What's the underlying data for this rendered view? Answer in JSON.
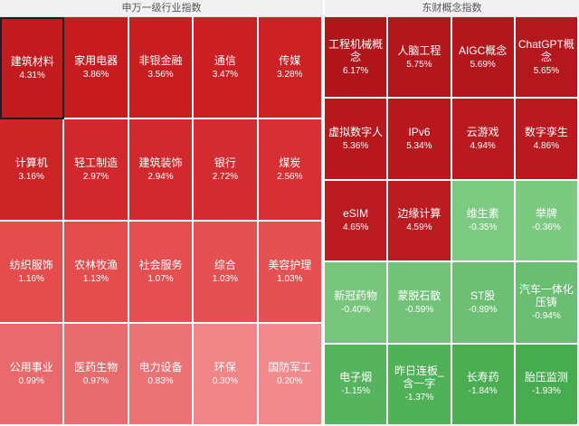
{
  "left_panel": {
    "title": "申万一级行业指数",
    "tiles": [
      {
        "name": "建筑材料",
        "pct": "4.31%",
        "color": "#c21a1e",
        "selected": true
      },
      {
        "name": "家用电器",
        "pct": "3.86%",
        "color": "#c61c20"
      },
      {
        "name": "非银金融",
        "pct": "3.56%",
        "color": "#c81e22"
      },
      {
        "name": "通信",
        "pct": "3.47%",
        "color": "#ca2024"
      },
      {
        "name": "传媒",
        "pct": "3.28%",
        "color": "#cc2226"
      },
      {
        "name": "计算机",
        "pct": "3.16%",
        "color": "#cd2428"
      },
      {
        "name": "轻工制造",
        "pct": "2.97%",
        "color": "#d0282c"
      },
      {
        "name": "建筑装饰",
        "pct": "2.94%",
        "color": "#d1292d"
      },
      {
        "name": "银行",
        "pct": "2.72%",
        "color": "#d42d31"
      },
      {
        "name": "煤炭",
        "pct": "2.56%",
        "color": "#d63034"
      },
      {
        "name": "纺织服饰",
        "pct": "1.16%",
        "color": "#e44c4e"
      },
      {
        "name": "农林牧渔",
        "pct": "1.13%",
        "color": "#e44c4e"
      },
      {
        "name": "社会服务",
        "pct": "1.07%",
        "color": "#e54f51"
      },
      {
        "name": "综合",
        "pct": "1.03%",
        "color": "#e55052"
      },
      {
        "name": "美容护理",
        "pct": "1.03%",
        "color": "#e55052"
      },
      {
        "name": "公用事业",
        "pct": "0.99%",
        "color": "#e86a6c"
      },
      {
        "name": "医药生物",
        "pct": "0.97%",
        "color": "#e86b6d"
      },
      {
        "name": "电力设备",
        "pct": "0.83%",
        "color": "#ea7375"
      },
      {
        "name": "环保",
        "pct": "0.30%",
        "color": "#ef8587"
      },
      {
        "name": "国防军工",
        "pct": "0.20%",
        "color": "#f08a8c"
      }
    ]
  },
  "right_panel": {
    "title": "东财概念指数",
    "tiles": [
      {
        "name": "工程机械概念",
        "pct": "6.17%",
        "color": "#b0151b"
      },
      {
        "name": "人脑工程",
        "pct": "5.75%",
        "color": "#b3161c"
      },
      {
        "name": "AIGC概念",
        "pct": "5.69%",
        "color": "#b3161c"
      },
      {
        "name": "ChatGPT概念",
        "pct": "5.65%",
        "color": "#b4171d"
      },
      {
        "name": "虚拟数字人",
        "pct": "5.36%",
        "color": "#b6181e"
      },
      {
        "name": "IPv6",
        "pct": "5.34%",
        "color": "#b6181e"
      },
      {
        "name": "云游戏",
        "pct": "4.94%",
        "color": "#b81a1f"
      },
      {
        "name": "数字孪生",
        "pct": "4.86%",
        "color": "#b91a20"
      },
      {
        "name": "eSIM",
        "pct": "4.65%",
        "color": "#ba1b21"
      },
      {
        "name": "边缘计算",
        "pct": "4.59%",
        "color": "#bb1c22"
      },
      {
        "name": "维生素",
        "pct": "-0.35%",
        "color": "#7dca83"
      },
      {
        "name": "举牌",
        "pct": "-0.36%",
        "color": "#7cc982"
      },
      {
        "name": "新冠药物",
        "pct": "-0.40%",
        "color": "#78c67e"
      },
      {
        "name": "蒙脱石散",
        "pct": "-0.59%",
        "color": "#72c379"
      },
      {
        "name": "ST股",
        "pct": "-0.89%",
        "color": "#6cbf73"
      },
      {
        "name": "汽车一体化压铸",
        "pct": "-0.94%",
        "color": "#6abe71"
      },
      {
        "name": "电子烟",
        "pct": "-1.15%",
        "color": "#55b45d"
      },
      {
        "name": "昨日连板_含一字",
        "pct": "-1.37%",
        "color": "#50b158"
      },
      {
        "name": "长寿药",
        "pct": "-1.84%",
        "color": "#4aad52"
      },
      {
        "name": "胎压监测",
        "pct": "-1.93%",
        "color": "#47ab4f"
      }
    ]
  }
}
